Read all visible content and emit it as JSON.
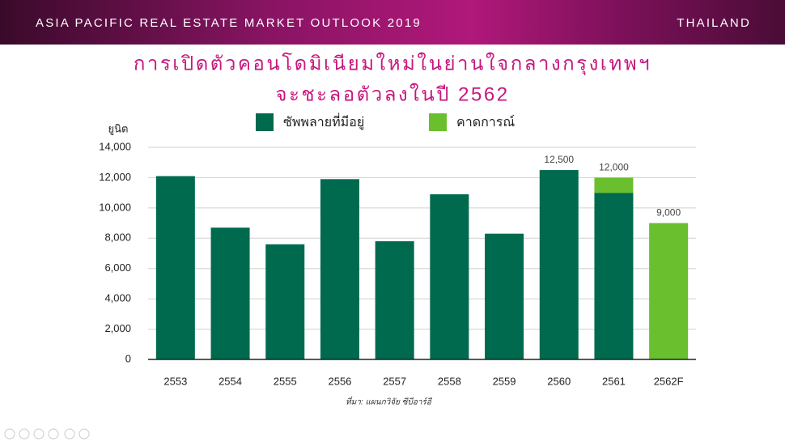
{
  "header": {
    "title": "ASIA PACIFIC REAL ESTATE MARKET OUTLOOK 2019",
    "country": "THAILAND"
  },
  "chart_data": {
    "type": "stacked-bar",
    "title": [
      "การเปิดตัวคอนโดมิเนียมใหม่ในย่านใจกลางกรุงเทพฯ",
      "จะชะลอตัวลงในปี 2562"
    ],
    "y_label": "ยูนิต",
    "source": "ที่มา: แผนกวิจัย ซีบีอาร์อี",
    "categories": [
      "2553",
      "2554",
      "2555",
      "2556",
      "2557",
      "2558",
      "2559",
      "2560",
      "2561",
      "2562F"
    ],
    "series": [
      {
        "name": "ซัพพลายที่มีอยู่",
        "color": "#006a4e",
        "values": [
          12100,
          8700,
          7600,
          11900,
          7800,
          10900,
          8300,
          12500,
          11000,
          null
        ]
      },
      {
        "name": "คาดการณ์",
        "color": "#6abf2e",
        "values": [
          null,
          null,
          null,
          null,
          null,
          null,
          null,
          null,
          1000,
          9000
        ]
      }
    ],
    "total_labels": [
      null,
      null,
      null,
      null,
      null,
      null,
      null,
      {
        "value": 12500,
        "label": "12,500"
      },
      {
        "value": 12000,
        "label": "12,000"
      },
      {
        "value": 9000,
        "label": "9,000"
      }
    ],
    "ylim": [
      0,
      14000
    ],
    "yticks": [
      0,
      {
        "value": 2000,
        "label": "2,000"
      },
      {
        "value": 4000,
        "label": "4,000"
      },
      {
        "value": 6000,
        "label": "6,000"
      },
      {
        "value": 8000,
        "label": "8,000"
      },
      {
        "value": 10000,
        "label": "10,000"
      },
      {
        "value": 12000,
        "label": "12,000"
      },
      {
        "value": 14000,
        "label": "14,000"
      }
    ],
    "grid": true
  }
}
